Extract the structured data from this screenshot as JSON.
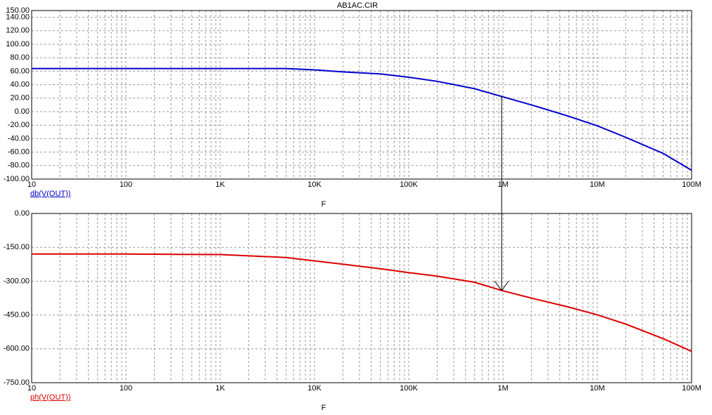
{
  "chart_data": [
    {
      "type": "line",
      "title": "AB1AC.CIR",
      "xlabel": "F",
      "log_x": true,
      "grid": true,
      "x": [
        10,
        100,
        1000,
        5000,
        10000,
        20000,
        50000,
        100000,
        200000,
        500000,
        1000000,
        2000000,
        5000000,
        10000000,
        20000000,
        50000000,
        100000000
      ],
      "series": [
        {
          "name": "db(V(OUT))",
          "color": "#0000cc",
          "values": [
            64,
            64,
            64,
            64,
            62,
            59,
            56,
            51,
            45,
            34,
            22,
            10,
            -7,
            -21,
            -38,
            -62,
            -87
          ]
        }
      ],
      "xlim": [
        10,
        100000000
      ],
      "xticks": [
        10,
        100,
        {
          "value": 1000,
          "label": "1K"
        },
        {
          "value": 10000,
          "label": "10K"
        },
        {
          "value": 100000,
          "label": "100K"
        },
        {
          "value": 1000000,
          "label": "1M"
        },
        {
          "value": 10000000,
          "label": "10M"
        },
        {
          "value": 100000000,
          "label": "100M"
        }
      ],
      "ylim": [
        -100,
        150
      ],
      "yticks": [
        {
          "value": 150,
          "label": "150.00"
        },
        {
          "value": 140,
          "label": "140.00"
        },
        {
          "value": 120,
          "label": "120.00"
        },
        {
          "value": 100,
          "label": "100.00"
        },
        {
          "value": 80,
          "label": "80.00"
        },
        {
          "value": 60,
          "label": "60.00"
        },
        {
          "value": 40,
          "label": "40.00"
        },
        {
          "value": 20,
          "label": "20.00"
        },
        {
          "value": 0,
          "label": "0.00"
        },
        {
          "value": -20,
          "label": "-20.00"
        },
        {
          "value": -40,
          "label": "-40.00"
        },
        {
          "value": -60,
          "label": "-60.00"
        },
        {
          "value": -80,
          "label": "-80.00"
        },
        {
          "value": -100,
          "label": "-100.00"
        }
      ]
    },
    {
      "type": "line",
      "xlabel": "F",
      "log_x": true,
      "grid": true,
      "x": [
        10,
        100,
        1000,
        5000,
        10000,
        20000,
        50000,
        100000,
        200000,
        500000,
        1000000,
        2000000,
        5000000,
        10000000,
        20000000,
        50000000,
        100000000
      ],
      "series": [
        {
          "name": "ph(V(OUT))",
          "color": "#dd0000",
          "values": [
            -180,
            -180,
            -182,
            -195,
            -210,
            -225,
            -245,
            -262,
            -278,
            -305,
            -343,
            -375,
            -415,
            -449,
            -490,
            -555,
            -611
          ]
        }
      ],
      "xlim": [
        10,
        100000000
      ],
      "xticks": [
        10,
        100,
        {
          "value": 1000,
          "label": "1K"
        },
        {
          "value": 10000,
          "label": "10K"
        },
        {
          "value": 100000,
          "label": "100K"
        },
        {
          "value": 1000000,
          "label": "1M"
        },
        {
          "value": 10000000,
          "label": "10M"
        },
        {
          "value": 100000000,
          "label": "100M"
        }
      ],
      "ylim": [
        -750,
        0
      ],
      "yticks": [
        {
          "value": 0,
          "label": "0.00"
        },
        {
          "value": -150,
          "label": "-150.00"
        },
        {
          "value": -300,
          "label": "-300.00"
        },
        {
          "value": -450,
          "label": "-450.00"
        },
        {
          "value": -600,
          "label": "-600.00"
        },
        {
          "value": -750,
          "label": "-750.00"
        }
      ]
    }
  ]
}
